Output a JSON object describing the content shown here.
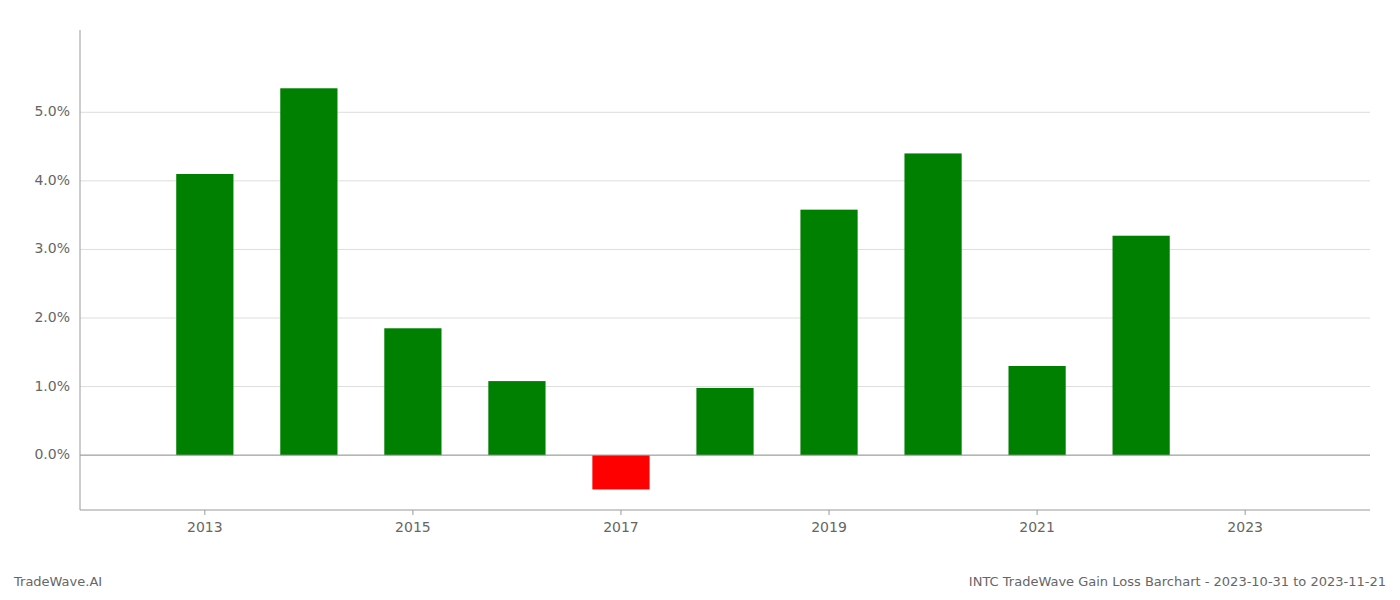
{
  "chart_data": {
    "type": "bar",
    "x": [
      2013,
      2014,
      2015,
      2016,
      2017,
      2018,
      2019,
      2020,
      2021,
      2022
    ],
    "values": [
      0.041,
      0.0535,
      0.0185,
      0.0108,
      -0.005,
      0.0098,
      0.0358,
      0.044,
      0.013,
      0.032
    ],
    "colors": [
      "#008000",
      "#008000",
      "#008000",
      "#008000",
      "#ff0000",
      "#008000",
      "#008000",
      "#008000",
      "#008000",
      "#008000"
    ],
    "xlim": [
      2011.8,
      2024.2
    ],
    "xticks": [
      2013,
      2015,
      2017,
      2019,
      2021,
      2023
    ],
    "ylim": [
      -0.008,
      0.062
    ],
    "yticks": [
      {
        "value": 0.0,
        "label": "0.0%"
      },
      {
        "value": 0.01,
        "label": "1.0%"
      },
      {
        "value": 0.02,
        "label": "2.0%"
      },
      {
        "value": 0.03,
        "label": "3.0%"
      },
      {
        "value": 0.04,
        "label": "4.0%"
      },
      {
        "value": 0.05,
        "label": "5.0%"
      }
    ],
    "grid": true,
    "annotations": [
      "TradeWave.AI",
      "INTC TradeWave Gain Loss Barchart - 2023-10-31 to 2023-11-21"
    ]
  }
}
